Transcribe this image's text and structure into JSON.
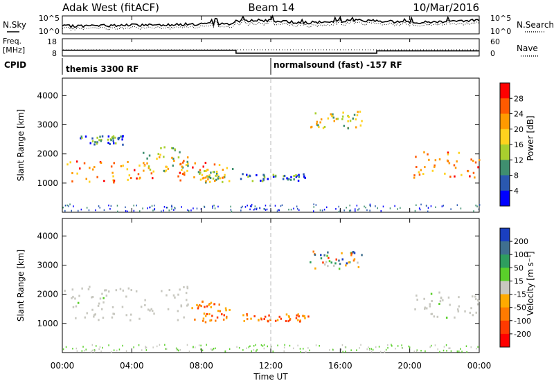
{
  "header": {
    "title": "Adak West (fitACF)",
    "beam": "Beam 14",
    "date": "10/Mar/2016"
  },
  "summary_panel": {
    "nsky_label": "N.Sky",
    "nsky_ticks": [
      "10^5",
      "10^0"
    ],
    "nsearch_label": "N.Search",
    "freq_label_line1": "Freq.",
    "freq_label_line2": "[MHz]",
    "freq_ticks": [
      "18",
      "8"
    ],
    "nave_ticks": [
      "60",
      "0"
    ],
    "nave_label": "Nave",
    "cpid_label": "CPID",
    "cpid_segments": [
      {
        "label": "themis 3300 RF",
        "start_hour": 0,
        "end_hour": 12
      },
      {
        "label": "normalsound (fast) -157 RF",
        "start_hour": 12,
        "end_hour": 24
      }
    ],
    "freq_steps": [
      {
        "start_hour": 0,
        "end_hour": 10.0,
        "mhz": 12.9
      },
      {
        "start_hour": 10.0,
        "end_hour": 18.1,
        "mhz": 10.4
      },
      {
        "start_hour": 18.1,
        "end_hour": 24,
        "mhz": 12.4
      }
    ]
  },
  "colorbars": {
    "power": {
      "label": "Power [dB]",
      "ticks": [
        "28",
        "24",
        "20",
        "16",
        "12",
        "8",
        "4"
      ],
      "colors": [
        "#ff0000",
        "#ff5a00",
        "#ff9a00",
        "#ffd21e",
        "#a9cf2e",
        "#3f8f6f",
        "#2a58b0",
        "#0000ff"
      ]
    },
    "velocity": {
      "label": "Velocity [m s⁻¹]",
      "ticks": [
        "200",
        "100",
        "50",
        "15",
        "-15",
        "-50",
        "-100",
        "-200"
      ],
      "colors": [
        "#1a3fc0",
        "#3f6f8f",
        "#2e9e5e",
        "#5ad02a",
        "#c8c8c0",
        "#ffaa00",
        "#ff7a00",
        "#ff3a00",
        "#ff0000"
      ]
    }
  },
  "axes": {
    "ylabel": "Slant Range [km]",
    "yticks": [
      "1000",
      "2000",
      "3000",
      "4000"
    ],
    "xlabel": "Time UT",
    "xticks": [
      "00:00",
      "04:00",
      "08:00",
      "12:00",
      "16:00",
      "20:00",
      "00:00"
    ]
  },
  "chart_data": {
    "type": "heatmap",
    "x_unit": "hours UT",
    "xlim": [
      0,
      24
    ],
    "ylim": [
      0,
      4600
    ],
    "panels": [
      {
        "name": "Power",
        "scatter_regions": [
          {
            "x": [
              0.0,
              9.6
            ],
            "y": [
              1050,
              1800
            ],
            "level": "high"
          },
          {
            "x": [
              4.6,
              7.2
            ],
            "y": [
              1400,
              2300
            ],
            "level": "mid"
          },
          {
            "x": [
              7.8,
              9.8
            ],
            "y": [
              1050,
              1550
            ],
            "level": "mid"
          },
          {
            "x": [
              1.0,
              3.5
            ],
            "y": [
              2350,
              2650
            ],
            "level": "low"
          },
          {
            "x": [
              10.2,
              14.2
            ],
            "y": [
              1100,
              1350
            ],
            "level": "low"
          },
          {
            "x": [
              20.2,
              24.0
            ],
            "y": [
              1200,
              2100
            ],
            "level": "high"
          },
          {
            "x": [
              14.2,
              17.2
            ],
            "y": [
              2900,
              3500
            ],
            "level": "mid"
          }
        ]
      },
      {
        "name": "Velocity",
        "scatter_regions": [
          {
            "x": [
              0.0,
              7.2
            ],
            "y": [
              1100,
              2300
            ],
            "level": "zero"
          },
          {
            "x": [
              7.4,
              9.6
            ],
            "y": [
              1050,
              1800
            ],
            "level": "negative"
          },
          {
            "x": [
              10.2,
              14.2
            ],
            "y": [
              1100,
              1350
            ],
            "level": "negative"
          },
          {
            "x": [
              20.2,
              24.0
            ],
            "y": [
              1200,
              2100
            ],
            "level": "zero"
          },
          {
            "x": [
              14.2,
              17.2
            ],
            "y": [
              2900,
              3500
            ],
            "level": "mixed"
          }
        ]
      }
    ]
  }
}
